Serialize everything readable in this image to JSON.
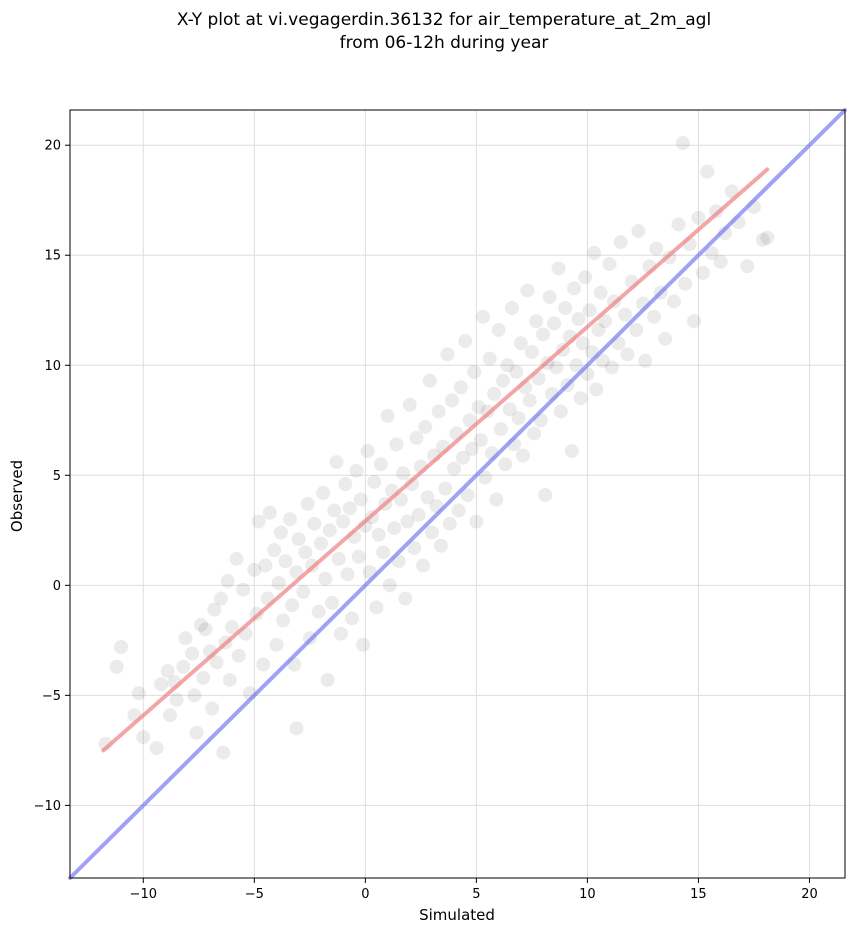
{
  "chart_data": {
    "type": "scatter",
    "title_lines": [
      "X-Y plot at vi.vegagerdin.36132 for air_temperature_at_2m_agl",
      "from 06-12h during year"
    ],
    "xlabel": "Simulated",
    "ylabel": "Observed",
    "xlim": [
      -13.3,
      21.6
    ],
    "ylim": [
      -13.3,
      21.6
    ],
    "xticks": [
      -10,
      -5,
      0,
      5,
      10,
      15,
      20
    ],
    "yticks": [
      -10,
      -5,
      0,
      5,
      10,
      15,
      20
    ],
    "xtick_labels": [
      "−10",
      "−5",
      "0",
      "5",
      "10",
      "15",
      "20"
    ],
    "ytick_labels": [
      "−10",
      "−5",
      "0",
      "5",
      "10",
      "15",
      "20"
    ],
    "grid": true,
    "point_color": "#000000",
    "point_opacity": 0.08,
    "regression_line": {
      "color": "#f08080",
      "x": [
        -11.8,
        18.1
      ],
      "y": [
        -7.5,
        18.9
      ]
    },
    "identity_line": {
      "color": "#6f6ff0",
      "x": [
        -13.3,
        21.6
      ],
      "y": [
        -13.3,
        21.6
      ]
    },
    "points": [
      [
        -11.7,
        -7.2
      ],
      [
        -11.2,
        -3.7
      ],
      [
        -11.0,
        -2.8
      ],
      [
        -10.4,
        -5.9
      ],
      [
        -10.2,
        -4.9
      ],
      [
        -10.0,
        -6.9
      ],
      [
        -9.4,
        -7.4
      ],
      [
        -9.2,
        -4.5
      ],
      [
        -8.9,
        -3.9
      ],
      [
        -8.8,
        -5.9
      ],
      [
        -8.6,
        -4.4
      ],
      [
        -8.5,
        -5.2
      ],
      [
        -8.2,
        -3.7
      ],
      [
        -8.1,
        -2.4
      ],
      [
        -7.8,
        -3.1
      ],
      [
        -7.7,
        -5.0
      ],
      [
        -7.6,
        -6.7
      ],
      [
        -7.4,
        -1.8
      ],
      [
        -7.3,
        -4.2
      ],
      [
        -7.2,
        -2.0
      ],
      [
        -7.0,
        -3.0
      ],
      [
        -6.9,
        -5.6
      ],
      [
        -6.8,
        -1.1
      ],
      [
        -6.7,
        -3.5
      ],
      [
        -6.5,
        -0.6
      ],
      [
        -6.4,
        -7.6
      ],
      [
        -6.3,
        -2.6
      ],
      [
        -6.2,
        0.2
      ],
      [
        -6.1,
        -4.3
      ],
      [
        -6.0,
        -1.9
      ],
      [
        -5.8,
        1.2
      ],
      [
        -5.7,
        -3.2
      ],
      [
        -5.5,
        -0.2
      ],
      [
        -5.4,
        -2.2
      ],
      [
        -5.2,
        -4.9
      ],
      [
        -5.0,
        0.7
      ],
      [
        -4.9,
        -1.3
      ],
      [
        -4.8,
        2.9
      ],
      [
        -4.6,
        -3.6
      ],
      [
        -4.5,
        0.9
      ],
      [
        -4.4,
        -0.6
      ],
      [
        -4.3,
        3.3
      ],
      [
        -4.1,
        1.6
      ],
      [
        -4.0,
        -2.7
      ],
      [
        -3.9,
        0.1
      ],
      [
        -3.8,
        2.4
      ],
      [
        -3.7,
        -1.6
      ],
      [
        -3.6,
        1.1
      ],
      [
        -3.4,
        3.0
      ],
      [
        -3.3,
        -0.9
      ],
      [
        -3.2,
        -3.6
      ],
      [
        -3.1,
        0.6
      ],
      [
        -3.1,
        -6.5
      ],
      [
        -3.0,
        2.1
      ],
      [
        -2.8,
        -0.3
      ],
      [
        -2.7,
        1.5
      ],
      [
        -2.6,
        3.7
      ],
      [
        -2.5,
        -2.4
      ],
      [
        -2.4,
        0.9
      ],
      [
        -2.3,
        2.8
      ],
      [
        -2.1,
        -1.2
      ],
      [
        -2.0,
        1.9
      ],
      [
        -1.9,
        4.2
      ],
      [
        -1.8,
        0.3
      ],
      [
        -1.7,
        -4.3
      ],
      [
        -1.6,
        2.5
      ],
      [
        -1.5,
        -0.8
      ],
      [
        -1.4,
        3.4
      ],
      [
        -1.3,
        5.6
      ],
      [
        -1.2,
        1.2
      ],
      [
        -1.1,
        -2.2
      ],
      [
        -1.0,
        2.9
      ],
      [
        -0.9,
        4.6
      ],
      [
        -0.8,
        0.5
      ],
      [
        -0.7,
        3.5
      ],
      [
        -0.6,
        -1.5
      ],
      [
        -0.5,
        2.2
      ],
      [
        -0.4,
        5.2
      ],
      [
        -0.3,
        1.3
      ],
      [
        -0.2,
        3.9
      ],
      [
        -0.1,
        -2.7
      ],
      [
        0.0,
        2.7
      ],
      [
        0.1,
        6.1
      ],
      [
        0.2,
        0.6
      ],
      [
        0.3,
        3.1
      ],
      [
        0.4,
        4.7
      ],
      [
        0.5,
        -1.0
      ],
      [
        0.6,
        2.3
      ],
      [
        0.7,
        5.5
      ],
      [
        0.8,
        1.5
      ],
      [
        0.9,
        3.7
      ],
      [
        1.0,
        7.7
      ],
      [
        1.1,
        0.0
      ],
      [
        1.2,
        4.3
      ],
      [
        1.3,
        2.6
      ],
      [
        1.4,
        6.4
      ],
      [
        1.5,
        1.1
      ],
      [
        1.6,
        3.9
      ],
      [
        1.7,
        5.1
      ],
      [
        1.8,
        -0.6
      ],
      [
        1.9,
        2.9
      ],
      [
        2.0,
        8.2
      ],
      [
        2.1,
        4.6
      ],
      [
        2.2,
        1.7
      ],
      [
        2.3,
        6.7
      ],
      [
        2.4,
        3.2
      ],
      [
        2.5,
        5.4
      ],
      [
        2.6,
        0.9
      ],
      [
        2.7,
        7.2
      ],
      [
        2.8,
        4.0
      ],
      [
        2.9,
        9.3
      ],
      [
        3.0,
        2.4
      ],
      [
        3.1,
        5.9
      ],
      [
        3.2,
        3.6
      ],
      [
        3.3,
        7.9
      ],
      [
        3.4,
        1.8
      ],
      [
        3.5,
        6.3
      ],
      [
        3.6,
        4.4
      ],
      [
        3.7,
        10.5
      ],
      [
        3.8,
        2.8
      ],
      [
        3.9,
        8.4
      ],
      [
        4.0,
        5.3
      ],
      [
        4.1,
        6.9
      ],
      [
        4.2,
        3.4
      ],
      [
        4.3,
        9.0
      ],
      [
        4.4,
        5.8
      ],
      [
        4.5,
        11.1
      ],
      [
        4.6,
        4.1
      ],
      [
        4.7,
        7.5
      ],
      [
        4.8,
        6.2
      ],
      [
        4.9,
        9.7
      ],
      [
        5.0,
        2.9
      ],
      [
        5.1,
        8.1
      ],
      [
        5.2,
        6.6
      ],
      [
        5.3,
        12.2
      ],
      [
        5.4,
        4.9
      ],
      [
        5.5,
        7.9
      ],
      [
        5.6,
        10.3
      ],
      [
        5.7,
        6.0
      ],
      [
        5.8,
        8.7
      ],
      [
        5.9,
        3.9
      ],
      [
        6.0,
        11.6
      ],
      [
        6.1,
        7.1
      ],
      [
        6.2,
        9.3
      ],
      [
        6.3,
        5.5
      ],
      [
        6.4,
        10.0
      ],
      [
        6.5,
        8.0
      ],
      [
        6.6,
        12.6
      ],
      [
        6.7,
        6.4
      ],
      [
        6.8,
        9.7
      ],
      [
        6.9,
        7.6
      ],
      [
        7.0,
        11.0
      ],
      [
        7.1,
        5.9
      ],
      [
        7.2,
        9.0
      ],
      [
        7.3,
        13.4
      ],
      [
        7.4,
        8.4
      ],
      [
        7.5,
        10.6
      ],
      [
        7.6,
        6.9
      ],
      [
        7.7,
        12.0
      ],
      [
        7.8,
        9.4
      ],
      [
        7.9,
        7.5
      ],
      [
        8.0,
        11.4
      ],
      [
        8.1,
        4.1
      ],
      [
        8.2,
        10.1
      ],
      [
        8.3,
        13.1
      ],
      [
        8.4,
        8.7
      ],
      [
        8.5,
        11.9
      ],
      [
        8.6,
        9.9
      ],
      [
        8.7,
        14.4
      ],
      [
        8.8,
        7.9
      ],
      [
        8.9,
        10.7
      ],
      [
        9.0,
        12.6
      ],
      [
        9.1,
        9.1
      ],
      [
        9.2,
        11.3
      ],
      [
        9.3,
        6.1
      ],
      [
        9.4,
        13.5
      ],
      [
        9.5,
        10.0
      ],
      [
        9.6,
        12.1
      ],
      [
        9.7,
        8.5
      ],
      [
        9.8,
        11.0
      ],
      [
        9.9,
        14.0
      ],
      [
        10.0,
        9.6
      ],
      [
        10.1,
        12.5
      ],
      [
        10.2,
        10.6
      ],
      [
        10.3,
        15.1
      ],
      [
        10.4,
        8.9
      ],
      [
        10.5,
        11.6
      ],
      [
        10.6,
        13.3
      ],
      [
        10.7,
        10.2
      ],
      [
        10.8,
        12.0
      ],
      [
        11.0,
        14.6
      ],
      [
        11.1,
        9.9
      ],
      [
        11.2,
        12.9
      ],
      [
        11.4,
        11.0
      ],
      [
        11.5,
        15.6
      ],
      [
        11.7,
        12.3
      ],
      [
        11.8,
        10.5
      ],
      [
        12.0,
        13.8
      ],
      [
        12.2,
        11.6
      ],
      [
        12.3,
        16.1
      ],
      [
        12.5,
        12.8
      ],
      [
        12.6,
        10.2
      ],
      [
        12.8,
        14.5
      ],
      [
        13.0,
        12.2
      ],
      [
        13.1,
        15.3
      ],
      [
        13.3,
        13.3
      ],
      [
        13.5,
        11.2
      ],
      [
        13.7,
        14.9
      ],
      [
        13.9,
        12.9
      ],
      [
        14.1,
        16.4
      ],
      [
        14.3,
        20.1
      ],
      [
        14.4,
        13.7
      ],
      [
        14.6,
        15.5
      ],
      [
        14.8,
        12.0
      ],
      [
        15.0,
        16.7
      ],
      [
        15.2,
        14.2
      ],
      [
        15.4,
        18.8
      ],
      [
        15.6,
        15.1
      ],
      [
        15.8,
        17.0
      ],
      [
        16.0,
        14.7
      ],
      [
        16.2,
        16.0
      ],
      [
        16.5,
        17.9
      ],
      [
        16.8,
        16.5
      ],
      [
        17.2,
        14.5
      ],
      [
        17.5,
        17.2
      ],
      [
        17.9,
        15.7
      ],
      [
        18.1,
        15.8
      ]
    ]
  }
}
